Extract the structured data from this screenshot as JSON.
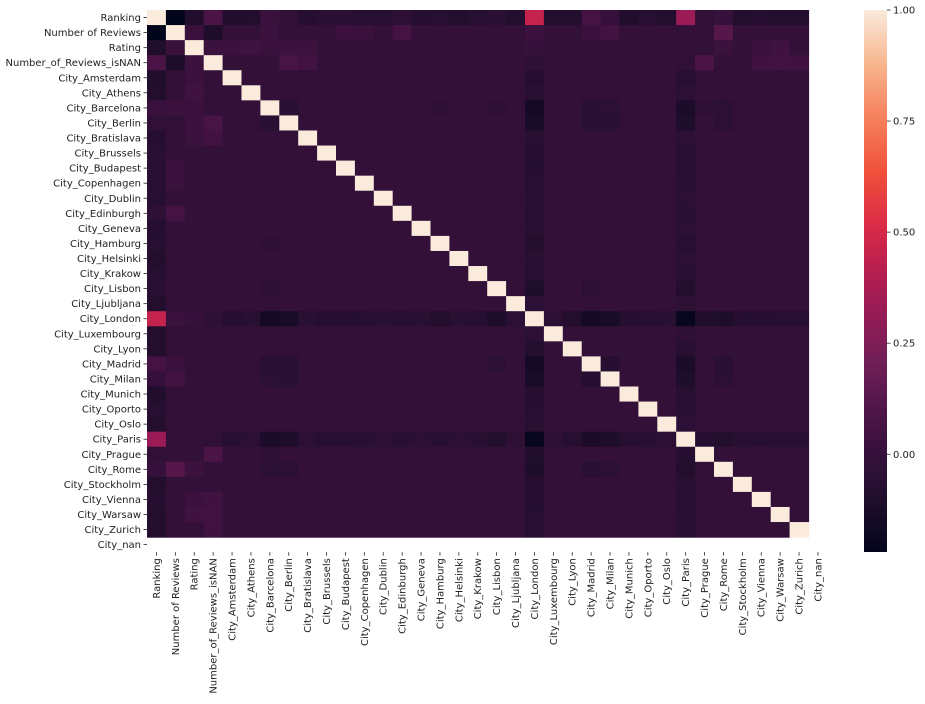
{
  "chart_data": {
    "type": "heatmap",
    "labels": [
      "Ranking",
      "Number of Reviews",
      "Rating",
      "Number_of_Reviews_isNAN",
      "City_Amsterdam",
      "City_Athens",
      "City_Barcelona",
      "City_Berlin",
      "City_Bratislava",
      "City_Brussels",
      "City_Budapest",
      "City_Copenhagen",
      "City_Dublin",
      "City_Edinburgh",
      "City_Geneva",
      "City_Hamburg",
      "City_Helsinki",
      "City_Krakow",
      "City_Lisbon",
      "City_Ljubljana",
      "City_London",
      "City_Luxembourg",
      "City_Lyon",
      "City_Madrid",
      "City_Milan",
      "City_Munich",
      "City_Oporto",
      "City_Oslo",
      "City_Paris",
      "City_Prague",
      "City_Rome",
      "City_Stockholm",
      "City_Vienna",
      "City_Warsaw",
      "City_Zurich",
      "City_nan"
    ],
    "vmin": -0.22,
    "vmax": 1.0,
    "colorbar_ticks": [
      "1.00",
      "0.75",
      "0.50",
      "0.25",
      "0.00"
    ],
    "colorbar_tick_values": [
      1.0,
      0.75,
      0.5,
      0.25,
      0.0
    ],
    "missing_label": "City_nan",
    "diagonal": 1.0,
    "default_city_pair": -0.02,
    "pairs": [
      [
        "Ranking",
        "Number of Reviews",
        -0.22
      ],
      [
        "Ranking",
        "Rating",
        -0.1
      ],
      [
        "Ranking",
        "Number_of_Reviews_isNAN",
        0.08
      ],
      [
        "Ranking",
        "City_Amsterdam",
        -0.1
      ],
      [
        "Ranking",
        "City_Athens",
        -0.09
      ],
      [
        "Ranking",
        "City_Barcelona",
        0.01
      ],
      [
        "Ranking",
        "City_Berlin",
        -0.03
      ],
      [
        "Ranking",
        "City_Bratislava",
        -0.08
      ],
      [
        "Ranking",
        "City_Brussels",
        -0.06
      ],
      [
        "Ranking",
        "City_Budapest",
        -0.06
      ],
      [
        "Ranking",
        "City_Copenhagen",
        -0.07
      ],
      [
        "Ranking",
        "City_Dublin",
        -0.07
      ],
      [
        "Ranking",
        "City_Edinburgh",
        -0.04
      ],
      [
        "Ranking",
        "City_Geneva",
        -0.08
      ],
      [
        "Ranking",
        "City_Hamburg",
        -0.07
      ],
      [
        "Ranking",
        "City_Helsinki",
        -0.09
      ],
      [
        "Ranking",
        "City_Krakow",
        -0.07
      ],
      [
        "Ranking",
        "City_Lisbon",
        -0.06
      ],
      [
        "Ranking",
        "City_Ljubljana",
        -0.09
      ],
      [
        "Ranking",
        "City_London",
        0.45
      ],
      [
        "Ranking",
        "City_Luxembourg",
        -0.09
      ],
      [
        "Ranking",
        "City_Lyon",
        -0.09
      ],
      [
        "Ranking",
        "City_Madrid",
        0.06
      ],
      [
        "Ranking",
        "City_Milan",
        -0.01
      ],
      [
        "Ranking",
        "City_Munich",
        -0.1
      ],
      [
        "Ranking",
        "City_Oporto",
        -0.07
      ],
      [
        "Ranking",
        "City_Oslo",
        -0.09
      ],
      [
        "Ranking",
        "City_Paris",
        0.33
      ],
      [
        "Ranking",
        "City_Prague",
        -0.03
      ],
      [
        "Ranking",
        "City_Rome",
        0.0
      ],
      [
        "Ranking",
        "City_Stockholm",
        -0.09
      ],
      [
        "Ranking",
        "City_Vienna",
        -0.08
      ],
      [
        "Ranking",
        "City_Warsaw",
        -0.09
      ],
      [
        "Ranking",
        "City_Zurich",
        -0.09
      ],
      [
        "Number of Reviews",
        "Rating",
        0.01
      ],
      [
        "Number of Reviews",
        "Number_of_Reviews_isNAN",
        -0.11
      ],
      [
        "Number of Reviews",
        "City_Barcelona",
        0.02
      ],
      [
        "Number of Reviews",
        "City_Berlin",
        -0.03
      ],
      [
        "Number of Reviews",
        "City_Budapest",
        0.03
      ],
      [
        "Number of Reviews",
        "City_Copenhagen",
        0.01
      ],
      [
        "Number of Reviews",
        "City_Edinburgh",
        0.06
      ],
      [
        "Number of Reviews",
        "City_London",
        0.02
      ],
      [
        "Number of Reviews",
        "City_Madrid",
        0.01
      ],
      [
        "Number of Reviews",
        "City_Milan",
        0.05
      ],
      [
        "Number of Reviews",
        "City_Rome",
        0.12
      ],
      [
        "Rating",
        "Number_of_Reviews_isNAN",
        0.02
      ],
      [
        "Rating",
        "City_Amsterdam",
        0.03
      ],
      [
        "Rating",
        "City_Athens",
        0.04
      ],
      [
        "Rating",
        "City_Barcelona",
        0.01
      ],
      [
        "Rating",
        "City_Berlin",
        0.03
      ],
      [
        "Rating",
        "City_Bratislava",
        0.02
      ],
      [
        "Rating",
        "City_London",
        0.0
      ],
      [
        "Rating",
        "City_Madrid",
        -0.03
      ],
      [
        "Rating",
        "City_Rome",
        0.02
      ],
      [
        "Rating",
        "City_Vienna",
        0.03
      ],
      [
        "Rating",
        "City_Warsaw",
        0.04
      ],
      [
        "Number_of_Reviews_isNAN",
        "City_Berlin",
        0.07
      ],
      [
        "Number_of_Reviews_isNAN",
        "City_Bratislava",
        0.05
      ],
      [
        "Number_of_Reviews_isNAN",
        "City_Prague",
        0.08
      ],
      [
        "Number_of_Reviews_isNAN",
        "City_Vienna",
        0.04
      ],
      [
        "Number_of_Reviews_isNAN",
        "City_Warsaw",
        0.05
      ],
      [
        "Number_of_Reviews_isNAN",
        "City_Zurich",
        0.04
      ],
      [
        "Number_of_Reviews_isNAN",
        "City_London",
        -0.04
      ],
      [
        "Number_of_Reviews_isNAN",
        "City_Paris",
        -0.03
      ],
      [
        "City_London",
        "City_Amsterdam",
        -0.08
      ],
      [
        "City_London",
        "City_Athens",
        -0.06
      ],
      [
        "City_London",
        "City_Barcelona",
        -0.15
      ],
      [
        "City_London",
        "City_Berlin",
        -0.13
      ],
      [
        "City_London",
        "City_Bratislava",
        -0.06
      ],
      [
        "City_London",
        "City_Brussels",
        -0.08
      ],
      [
        "City_London",
        "City_Budapest",
        -0.08
      ],
      [
        "City_London",
        "City_Copenhagen",
        -0.07
      ],
      [
        "City_London",
        "City_Dublin",
        -0.06
      ],
      [
        "City_London",
        "City_Edinburgh",
        -0.07
      ],
      [
        "City_London",
        "City_Geneva",
        -0.06
      ],
      [
        "City_London",
        "City_Hamburg",
        -0.09
      ],
      [
        "City_London",
        "City_Helsinki",
        -0.06
      ],
      [
        "City_London",
        "City_Krakow",
        -0.07
      ],
      [
        "City_London",
        "City_Lisbon",
        -0.11
      ],
      [
        "City_London",
        "City_Ljubljana",
        -0.05
      ],
      [
        "City_London",
        "City_Luxembourg",
        -0.05
      ],
      [
        "City_London",
        "City_Lyon",
        -0.09
      ],
      [
        "City_London",
        "City_Madrid",
        -0.15
      ],
      [
        "City_London",
        "City_Milan",
        -0.13
      ],
      [
        "City_London",
        "City_Munich",
        -0.08
      ],
      [
        "City_London",
        "City_Oporto",
        -0.07
      ],
      [
        "City_London",
        "City_Oslo",
        -0.06
      ],
      [
        "City_London",
        "City_Paris",
        -0.2
      ],
      [
        "City_London",
        "City_Prague",
        -0.1
      ],
      [
        "City_London",
        "City_Rome",
        -0.11
      ],
      [
        "City_London",
        "City_Stockholm",
        -0.08
      ],
      [
        "City_London",
        "City_Vienna",
        -0.08
      ],
      [
        "City_London",
        "City_Warsaw",
        -0.07
      ],
      [
        "City_London",
        "City_Zurich",
        -0.07
      ],
      [
        "City_Paris",
        "City_Amsterdam",
        -0.07
      ],
      [
        "City_Paris",
        "City_Athens",
        -0.05
      ],
      [
        "City_Paris",
        "City_Barcelona",
        -0.12
      ],
      [
        "City_Paris",
        "City_Berlin",
        -0.11
      ],
      [
        "City_Paris",
        "City_Bratislava",
        -0.05
      ],
      [
        "City_Paris",
        "City_Brussels",
        -0.07
      ],
      [
        "City_Paris",
        "City_Budapest",
        -0.07
      ],
      [
        "City_Paris",
        "City_Copenhagen",
        -0.06
      ],
      [
        "City_Paris",
        "City_Dublin",
        -0.05
      ],
      [
        "City_Paris",
        "City_Edinburgh",
        -0.06
      ],
      [
        "City_Paris",
        "City_Geneva",
        -0.05
      ],
      [
        "City_Paris",
        "City_Hamburg",
        -0.07
      ],
      [
        "City_Paris",
        "City_Helsinki",
        -0.05
      ],
      [
        "City_Paris",
        "City_Krakow",
        -0.06
      ],
      [
        "City_Paris",
        "City_Lisbon",
        -0.09
      ],
      [
        "City_Paris",
        "City_Ljubljana",
        -0.04
      ],
      [
        "City_Paris",
        "City_Luxembourg",
        -0.04
      ],
      [
        "City_Paris",
        "City_Lyon",
        -0.07
      ],
      [
        "City_Paris",
        "City_Madrid",
        -0.12
      ],
      [
        "City_Paris",
        "City_Milan",
        -0.11
      ],
      [
        "City_Paris",
        "City_Munich",
        -0.07
      ],
      [
        "City_Paris",
        "City_Oporto",
        -0.06
      ],
      [
        "City_Paris",
        "City_Oslo",
        -0.05
      ],
      [
        "City_Paris",
        "City_Prague",
        -0.08
      ],
      [
        "City_Paris",
        "City_Rome",
        -0.09
      ],
      [
        "City_Paris",
        "City_Stockholm",
        -0.06
      ],
      [
        "City_Paris",
        "City_Vienna",
        -0.07
      ],
      [
        "City_Paris",
        "City_Warsaw",
        -0.06
      ],
      [
        "City_Paris",
        "City_Zurich",
        -0.06
      ],
      [
        "City_Madrid",
        "City_Barcelona",
        -0.06
      ],
      [
        "City_Madrid",
        "City_Berlin",
        -0.06
      ],
      [
        "City_Madrid",
        "City_Milan",
        -0.08
      ],
      [
        "City_Madrid",
        "City_Rome",
        -0.06
      ],
      [
        "City_Madrid",
        "City_Lisbon",
        -0.05
      ],
      [
        "City_Milan",
        "City_Barcelona",
        -0.05
      ],
      [
        "City_Milan",
        "City_Berlin",
        -0.06
      ],
      [
        "City_Milan",
        "City_Rome",
        -0.05
      ],
      [
        "City_Rome",
        "City_Barcelona",
        -0.05
      ],
      [
        "City_Rome",
        "City_Berlin",
        -0.05
      ],
      [
        "City_Barcelona",
        "City_Berlin",
        -0.06
      ],
      [
        "City_Lisbon",
        "City_Barcelona",
        -0.04
      ],
      [
        "City_Prague",
        "City_Barcelona",
        -0.04
      ],
      [
        "City_Hamburg",
        "City_Barcelona",
        -0.04
      ]
    ]
  }
}
